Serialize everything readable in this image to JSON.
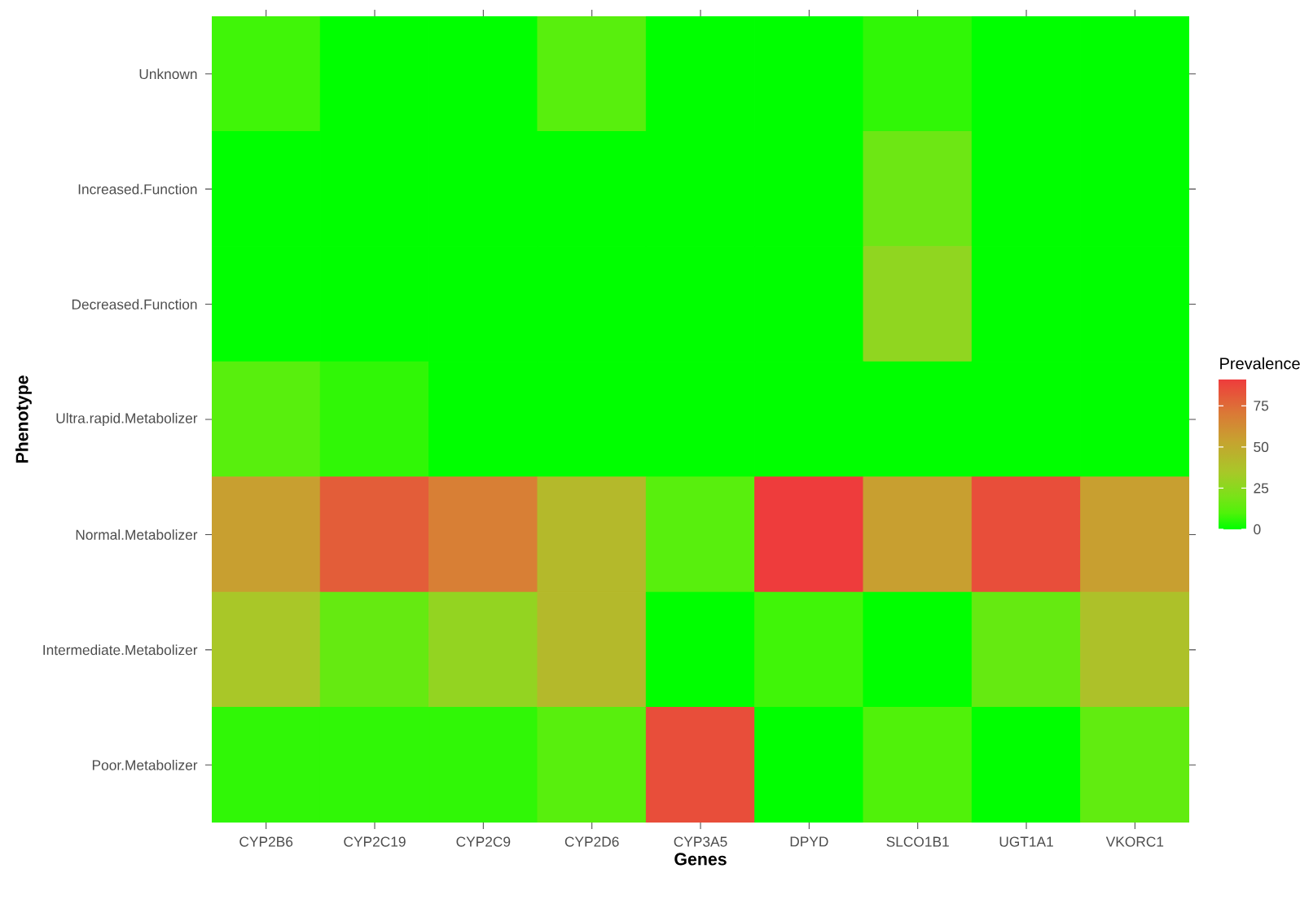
{
  "chart_data": {
    "type": "heatmap",
    "xlabel": "Genes",
    "ylabel": "Phenotype",
    "clabel": "Prevalence",
    "categories": [
      "CYP2B6",
      "CYP2C19",
      "CYP2C9",
      "CYP2D6",
      "CYP3A5",
      "DPYD",
      "SLCO1B1",
      "UGT1A1",
      "VKORC1"
    ],
    "y_categories": [
      "Unknown",
      "Increased.Function",
      "Decreased.Function",
      "Ultra.rapid.Metabolizer",
      "Normal.Metabolizer",
      "Intermediate.Metabolizer",
      "Poor.Metabolizer"
    ],
    "cells": [
      [
        8,
        0,
        0,
        12,
        0,
        0,
        6,
        0,
        0
      ],
      [
        0,
        0,
        0,
        0,
        0,
        0,
        17,
        0,
        0
      ],
      [
        0,
        0,
        0,
        0,
        0,
        0,
        27,
        0,
        0
      ],
      [
        12,
        6,
        0,
        0,
        0,
        0,
        0,
        0,
        0
      ],
      [
        55,
        80,
        68,
        42,
        12,
        91,
        55,
        85,
        55
      ],
      [
        35,
        15,
        28,
        42,
        0,
        8,
        0,
        15,
        38
      ],
      [
        6,
        6,
        6,
        12,
        85,
        0,
        10,
        0,
        14
      ]
    ],
    "clim": [
      0,
      91
    ],
    "cticks": [
      0,
      25,
      50,
      75
    ]
  }
}
